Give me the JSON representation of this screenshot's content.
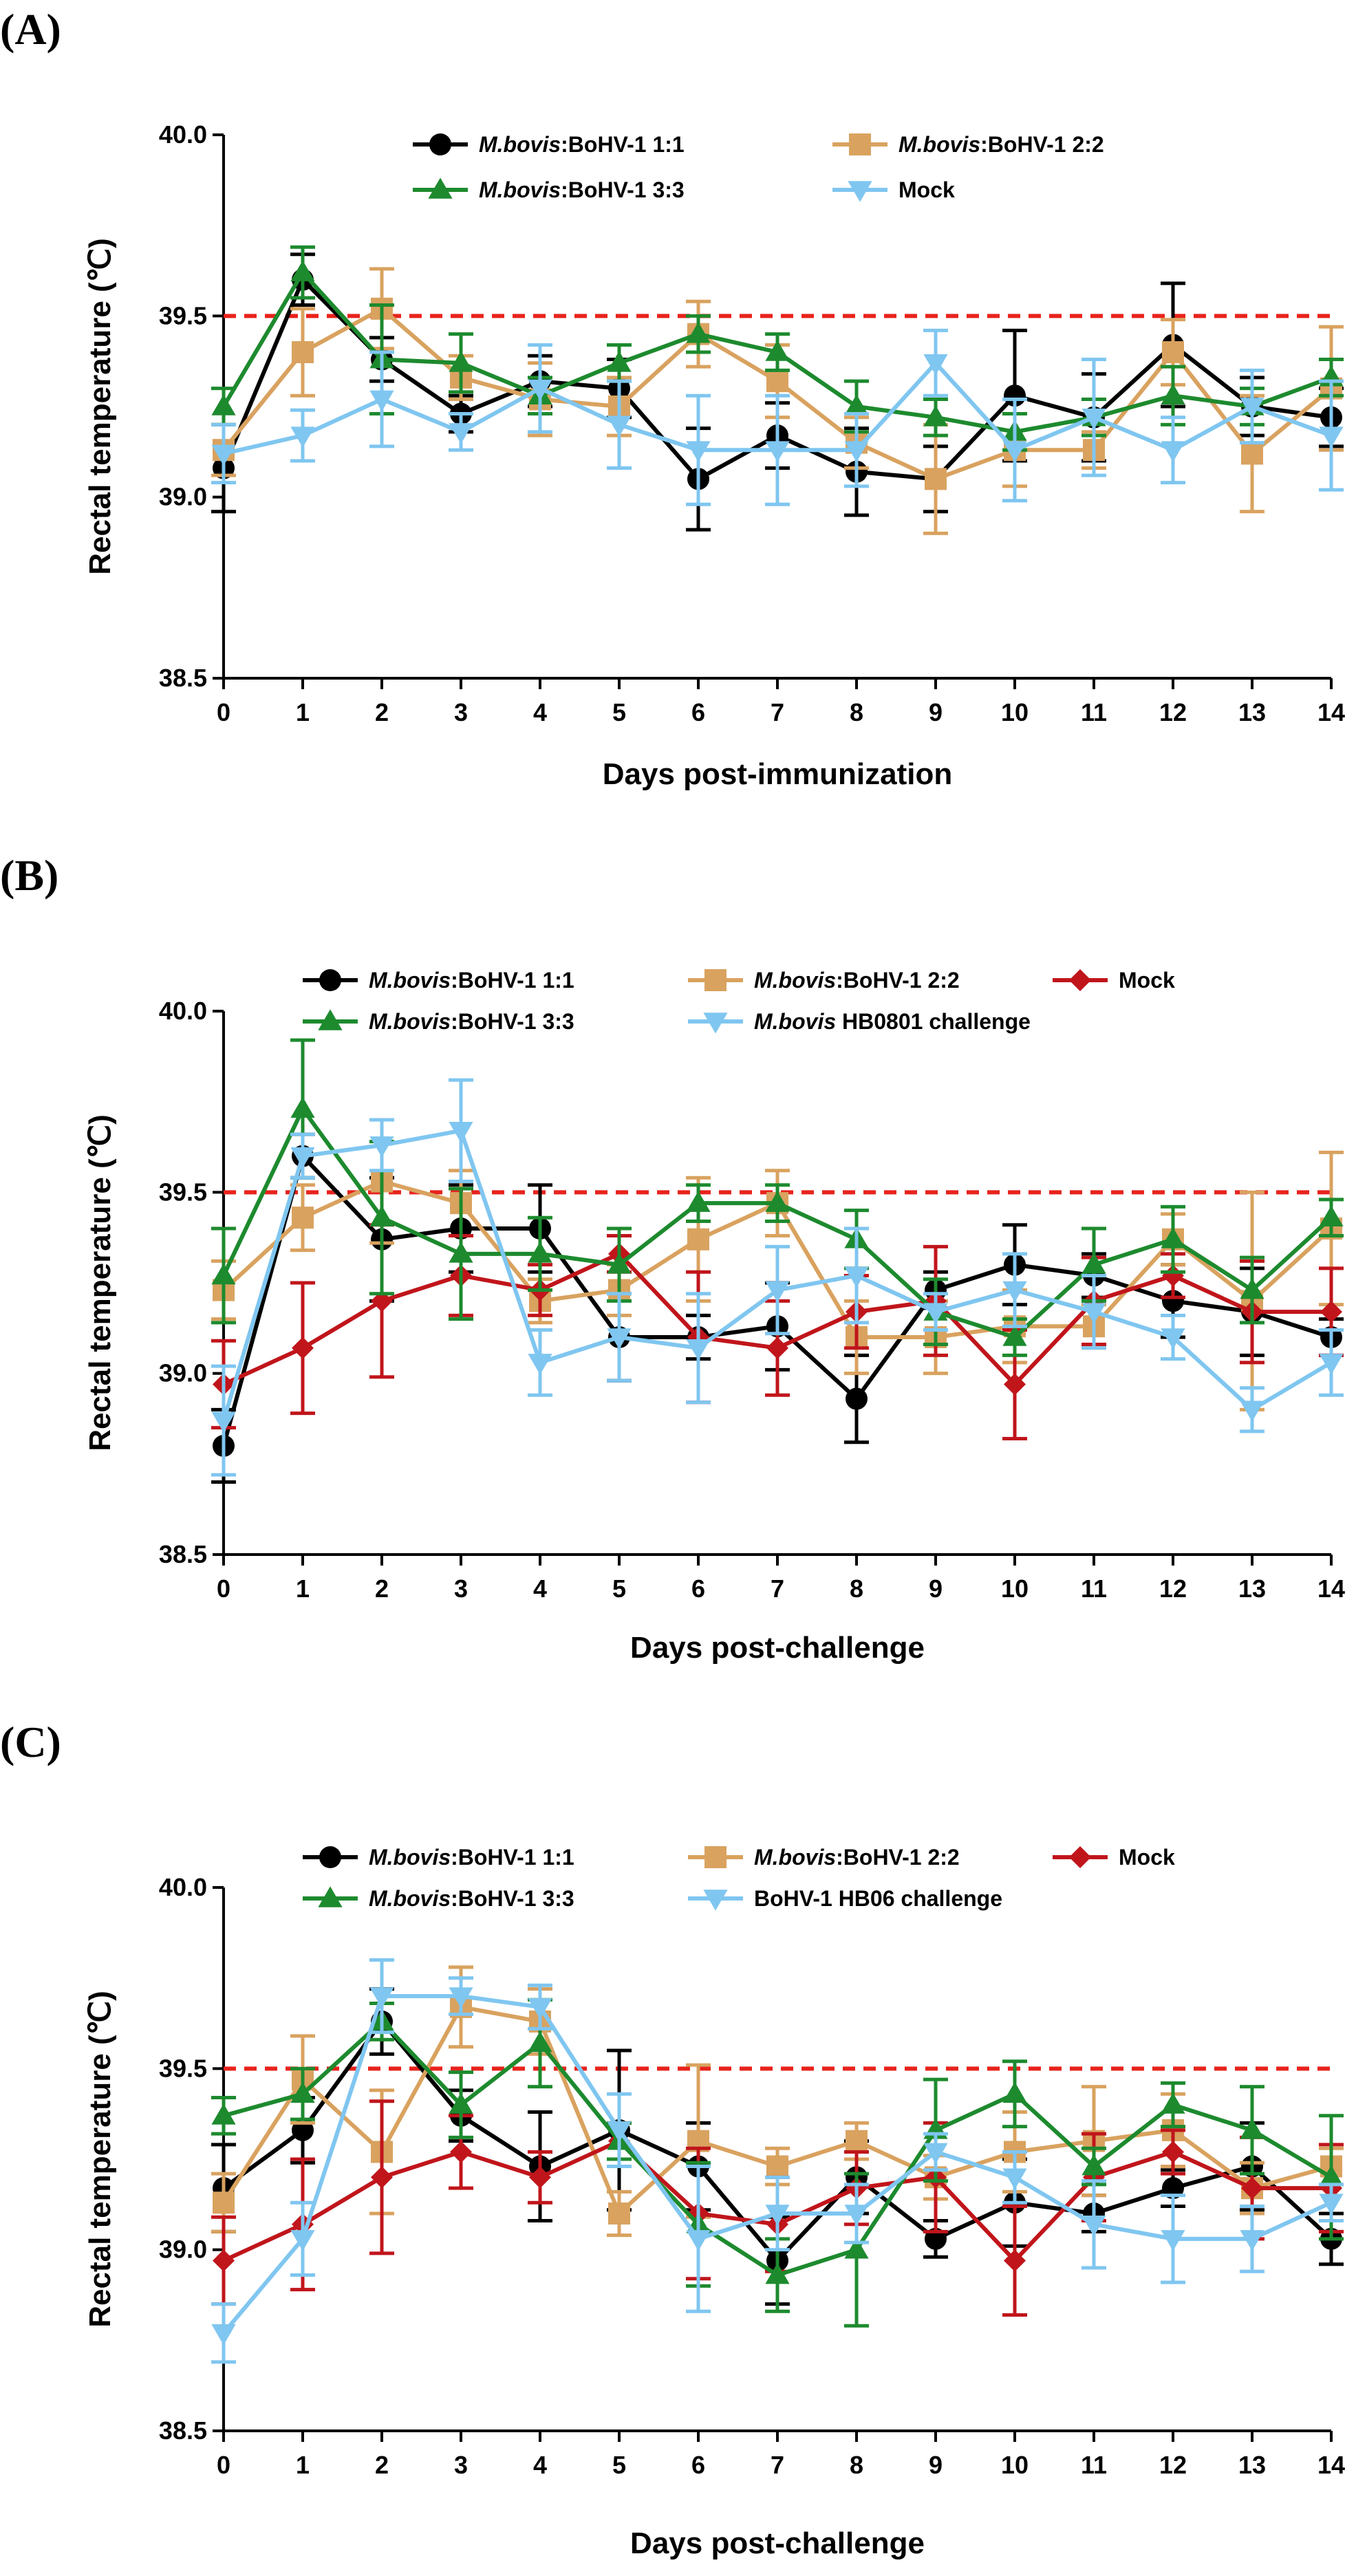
{
  "figure": {
    "panels": [
      "(A)",
      "(B)",
      "(C)"
    ]
  },
  "chart_data": [
    {
      "type": "line",
      "panel_label": "(A)",
      "xlabel": "Days post-immunization",
      "ylabel": "Rectal temperature (℃)",
      "x": [
        0,
        1,
        2,
        3,
        4,
        5,
        6,
        7,
        8,
        9,
        10,
        11,
        12,
        13,
        14
      ],
      "ylim": [
        38.5,
        40.0
      ],
      "yticks": [
        "38.5",
        "39.0",
        "39.5",
        "40.0"
      ],
      "threshold": 39.5,
      "threshold_color": "#e8231c",
      "series": [
        {
          "name_italic": "M.bovis",
          "name_rest": ":BoHV-1 1:1",
          "color": "#000000",
          "marker": "circle",
          "values": [
            39.08,
            39.6,
            39.38,
            39.23,
            39.32,
            39.3,
            39.05,
            39.17,
            39.07,
            39.05,
            39.28,
            39.22,
            39.42,
            39.25,
            39.22
          ],
          "errors": [
            0.12,
            0.07,
            0.06,
            0.05,
            0.07,
            0.08,
            0.14,
            0.09,
            0.12,
            0.09,
            0.18,
            0.12,
            0.17,
            0.08,
            0.08
          ]
        },
        {
          "name_italic": "M.bovis",
          "name_rest": ":BoHV-1 2:2",
          "color": "#d9a25f",
          "marker": "square",
          "values": [
            39.13,
            39.4,
            39.52,
            39.33,
            39.27,
            39.25,
            39.45,
            39.32,
            39.15,
            39.05,
            39.13,
            39.13,
            39.4,
            39.12,
            39.3
          ],
          "errors": [
            0.07,
            0.12,
            0.11,
            0.06,
            0.1,
            0.08,
            0.09,
            0.1,
            0.07,
            0.15,
            0.1,
            0.05,
            0.09,
            0.16,
            0.17
          ]
        },
        {
          "name_italic": "M.bovis",
          "name_rest": ":BoHV-1 3:3",
          "color": "#1d8a2e",
          "marker": "triangle-up",
          "values": [
            39.25,
            39.62,
            39.38,
            39.37,
            39.28,
            39.37,
            39.45,
            39.4,
            39.25,
            39.22,
            39.18,
            39.22,
            39.28,
            39.25,
            39.33
          ],
          "errors": [
            0.05,
            0.07,
            0.15,
            0.08,
            0.05,
            0.05,
            0.05,
            0.05,
            0.07,
            0.05,
            0.05,
            0.05,
            0.08,
            0.05,
            0.05
          ]
        },
        {
          "name_italic": "",
          "name_rest": "Mock",
          "color": "#7fc6f0",
          "marker": "triangle-down",
          "values": [
            39.12,
            39.17,
            39.27,
            39.18,
            39.3,
            39.2,
            39.13,
            39.13,
            39.13,
            39.37,
            39.13,
            39.22,
            39.13,
            39.25,
            39.17
          ],
          "errors": [
            0.08,
            0.07,
            0.13,
            0.05,
            0.12,
            0.12,
            0.15,
            0.15,
            0.1,
            0.09,
            0.14,
            0.16,
            0.09,
            0.1,
            0.15
          ]
        }
      ]
    },
    {
      "type": "line",
      "panel_label": "(B)",
      "xlabel": "Days post-challenge",
      "ylabel": "Rectal temperature (℃)",
      "x": [
        0,
        1,
        2,
        3,
        4,
        5,
        6,
        7,
        8,
        9,
        10,
        11,
        12,
        13,
        14
      ],
      "ylim": [
        38.5,
        40.0
      ],
      "yticks": [
        "38.5",
        "39.0",
        "39.5",
        "40.0"
      ],
      "threshold": 39.5,
      "threshold_color": "#e8231c",
      "series": [
        {
          "name_italic": "M.bovis",
          "name_rest": ":BoHV-1 1:1",
          "color": "#000000",
          "marker": "circle",
          "values": [
            38.8,
            39.6,
            39.37,
            39.4,
            39.4,
            39.1,
            39.1,
            39.13,
            38.93,
            39.23,
            39.3,
            39.27,
            39.2,
            39.17,
            39.1
          ],
          "errors": [
            0.1,
            0.06,
            0.17,
            0.12,
            0.12,
            0.12,
            0.06,
            0.12,
            0.12,
            0.05,
            0.11,
            0.06,
            0.1,
            0.12,
            0.05
          ]
        },
        {
          "name_italic": "M.bovis",
          "name_rest": ":BoHV-1 2:2",
          "color": "#d9a25f",
          "marker": "square",
          "values": [
            39.23,
            39.43,
            39.53,
            39.47,
            39.2,
            39.23,
            39.37,
            39.47,
            39.1,
            39.1,
            39.13,
            39.13,
            39.37,
            39.2,
            39.4
          ],
          "errors": [
            0.08,
            0.09,
            0.17,
            0.09,
            0.06,
            0.07,
            0.17,
            0.09,
            0.1,
            0.1,
            0.1,
            0.06,
            0.07,
            0.3,
            0.21
          ]
        },
        {
          "name_italic": "",
          "name_rest": "Mock",
          "color": "#c0151b",
          "marker": "diamond",
          "values": [
            38.97,
            39.07,
            39.2,
            39.27,
            39.23,
            39.33,
            39.1,
            39.07,
            39.17,
            39.2,
            38.97,
            39.2,
            39.27,
            39.17,
            39.17
          ],
          "errors": [
            0.12,
            0.18,
            0.21,
            0.11,
            0.07,
            0.05,
            0.18,
            0.13,
            0.1,
            0.15,
            0.15,
            0.12,
            0.06,
            0.14,
            0.12
          ]
        },
        {
          "name_italic": "M.bovis",
          "name_rest": ":BoHV-1 3:3",
          "color": "#1d8a2e",
          "marker": "triangle-up",
          "values": [
            39.27,
            39.73,
            39.43,
            39.33,
            39.33,
            39.3,
            39.47,
            39.47,
            39.37,
            39.17,
            39.1,
            39.3,
            39.37,
            39.23,
            39.43
          ],
          "errors": [
            0.13,
            0.19,
            0.21,
            0.18,
            0.1,
            0.1,
            0.05,
            0.05,
            0.08,
            0.09,
            0.05,
            0.1,
            0.09,
            0.09,
            0.05
          ]
        },
        {
          "name_italic": "M.bovis",
          "name_rest": " HB0801 challenge",
          "color": "#7fc6f0",
          "marker": "triangle-down",
          "values": [
            38.87,
            39.6,
            39.63,
            39.67,
            39.03,
            39.1,
            39.07,
            39.23,
            39.27,
            39.17,
            39.23,
            39.17,
            39.1,
            38.9,
            39.03
          ],
          "errors": [
            0.15,
            0.06,
            0.07,
            0.14,
            0.09,
            0.12,
            0.15,
            0.12,
            0.13,
            0.05,
            0.1,
            0.1,
            0.06,
            0.06,
            0.09
          ]
        }
      ]
    },
    {
      "type": "line",
      "panel_label": "(C)",
      "xlabel": "Days post-challenge",
      "ylabel": "Rectal temperature (℃)",
      "x": [
        0,
        1,
        2,
        3,
        4,
        5,
        6,
        7,
        8,
        9,
        10,
        11,
        12,
        13,
        14
      ],
      "ylim": [
        38.5,
        40.0
      ],
      "yticks": [
        "38.5",
        "39.0",
        "39.5",
        "40.0"
      ],
      "threshold": 39.5,
      "threshold_color": "#e8231c",
      "series": [
        {
          "name_italic": "M.bovis",
          "name_rest": ":BoHV-1 1:1",
          "color": "#000000",
          "marker": "circle",
          "values": [
            39.17,
            39.33,
            39.63,
            39.37,
            39.23,
            39.33,
            39.23,
            38.97,
            39.2,
            39.03,
            39.13,
            39.1,
            39.17,
            39.23,
            39.03
          ],
          "errors": [
            0.12,
            0.09,
            0.09,
            0.07,
            0.15,
            0.22,
            0.12,
            0.12,
            0.1,
            0.05,
            0.12,
            0.05,
            0.05,
            0.12,
            0.07
          ]
        },
        {
          "name_italic": "M.bovis",
          "name_rest": ":BoHV-1 2:2",
          "color": "#d9a25f",
          "marker": "square",
          "values": [
            39.13,
            39.47,
            39.27,
            39.67,
            39.63,
            39.1,
            39.3,
            39.23,
            39.3,
            39.2,
            39.27,
            39.3,
            39.33,
            39.17,
            39.23
          ],
          "errors": [
            0.08,
            0.12,
            0.17,
            0.11,
            0.09,
            0.06,
            0.21,
            0.05,
            0.05,
            0.06,
            0.11,
            0.15,
            0.1,
            0.07,
            0.05
          ]
        },
        {
          "name_italic": "",
          "name_rest": "Mock",
          "color": "#c0151b",
          "marker": "diamond",
          "values": [
            38.97,
            39.07,
            39.2,
            39.27,
            39.2,
            39.3,
            39.1,
            39.07,
            39.17,
            39.2,
            38.97,
            39.2,
            39.27,
            39.17,
            39.17
          ],
          "errors": [
            0.12,
            0.18,
            0.21,
            0.1,
            0.07,
            0.05,
            0.18,
            0.13,
            0.1,
            0.15,
            0.15,
            0.12,
            0.06,
            0.14,
            0.12
          ]
        },
        {
          "name_italic": "M.bovis",
          "name_rest": ":BoHV-1 3:3",
          "color": "#1d8a2e",
          "marker": "triangle-up",
          "values": [
            39.37,
            39.43,
            39.63,
            39.4,
            39.57,
            39.3,
            39.07,
            38.93,
            39.0,
            39.33,
            39.43,
            39.23,
            39.4,
            39.33,
            39.2
          ],
          "errors": [
            0.05,
            0.07,
            0.05,
            0.09,
            0.12,
            0.05,
            0.17,
            0.1,
            0.21,
            0.14,
            0.09,
            0.05,
            0.06,
            0.12,
            0.17
          ]
        },
        {
          "name_italic": "",
          "name_rest": "BoHV-1 HB06 challenge",
          "color": "#7fc6f0",
          "marker": "triangle-down",
          "values": [
            38.77,
            39.03,
            39.7,
            39.7,
            39.67,
            39.33,
            39.03,
            39.1,
            39.1,
            39.27,
            39.2,
            39.07,
            39.03,
            39.03,
            39.13
          ],
          "errors": [
            0.08,
            0.1,
            0.1,
            0.05,
            0.06,
            0.1,
            0.2,
            0.1,
            0.08,
            0.05,
            0.07,
            0.12,
            0.12,
            0.09,
            0.05
          ]
        }
      ]
    }
  ]
}
